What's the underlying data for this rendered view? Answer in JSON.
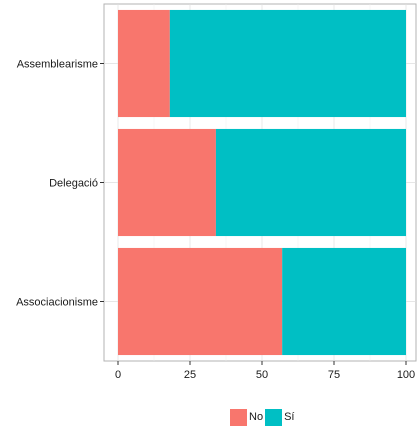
{
  "chart_data": {
    "type": "bar",
    "orientation": "horizontal",
    "stacked": true,
    "categories": [
      "Assemblearisme",
      "Delegació",
      "Associacionisme"
    ],
    "series": [
      {
        "name": "No",
        "values": [
          18,
          34,
          57
        ],
        "color": "#F8766D"
      },
      {
        "name": "Sí",
        "values": [
          82,
          66,
          43
        ],
        "color": "#00BFC4"
      }
    ],
    "xlim": [
      0,
      100
    ],
    "xticks": [
      0,
      25,
      50,
      75,
      100
    ],
    "xlabel": "",
    "ylabel": "",
    "title": "",
    "grid": true,
    "legend_position": "bottom"
  }
}
